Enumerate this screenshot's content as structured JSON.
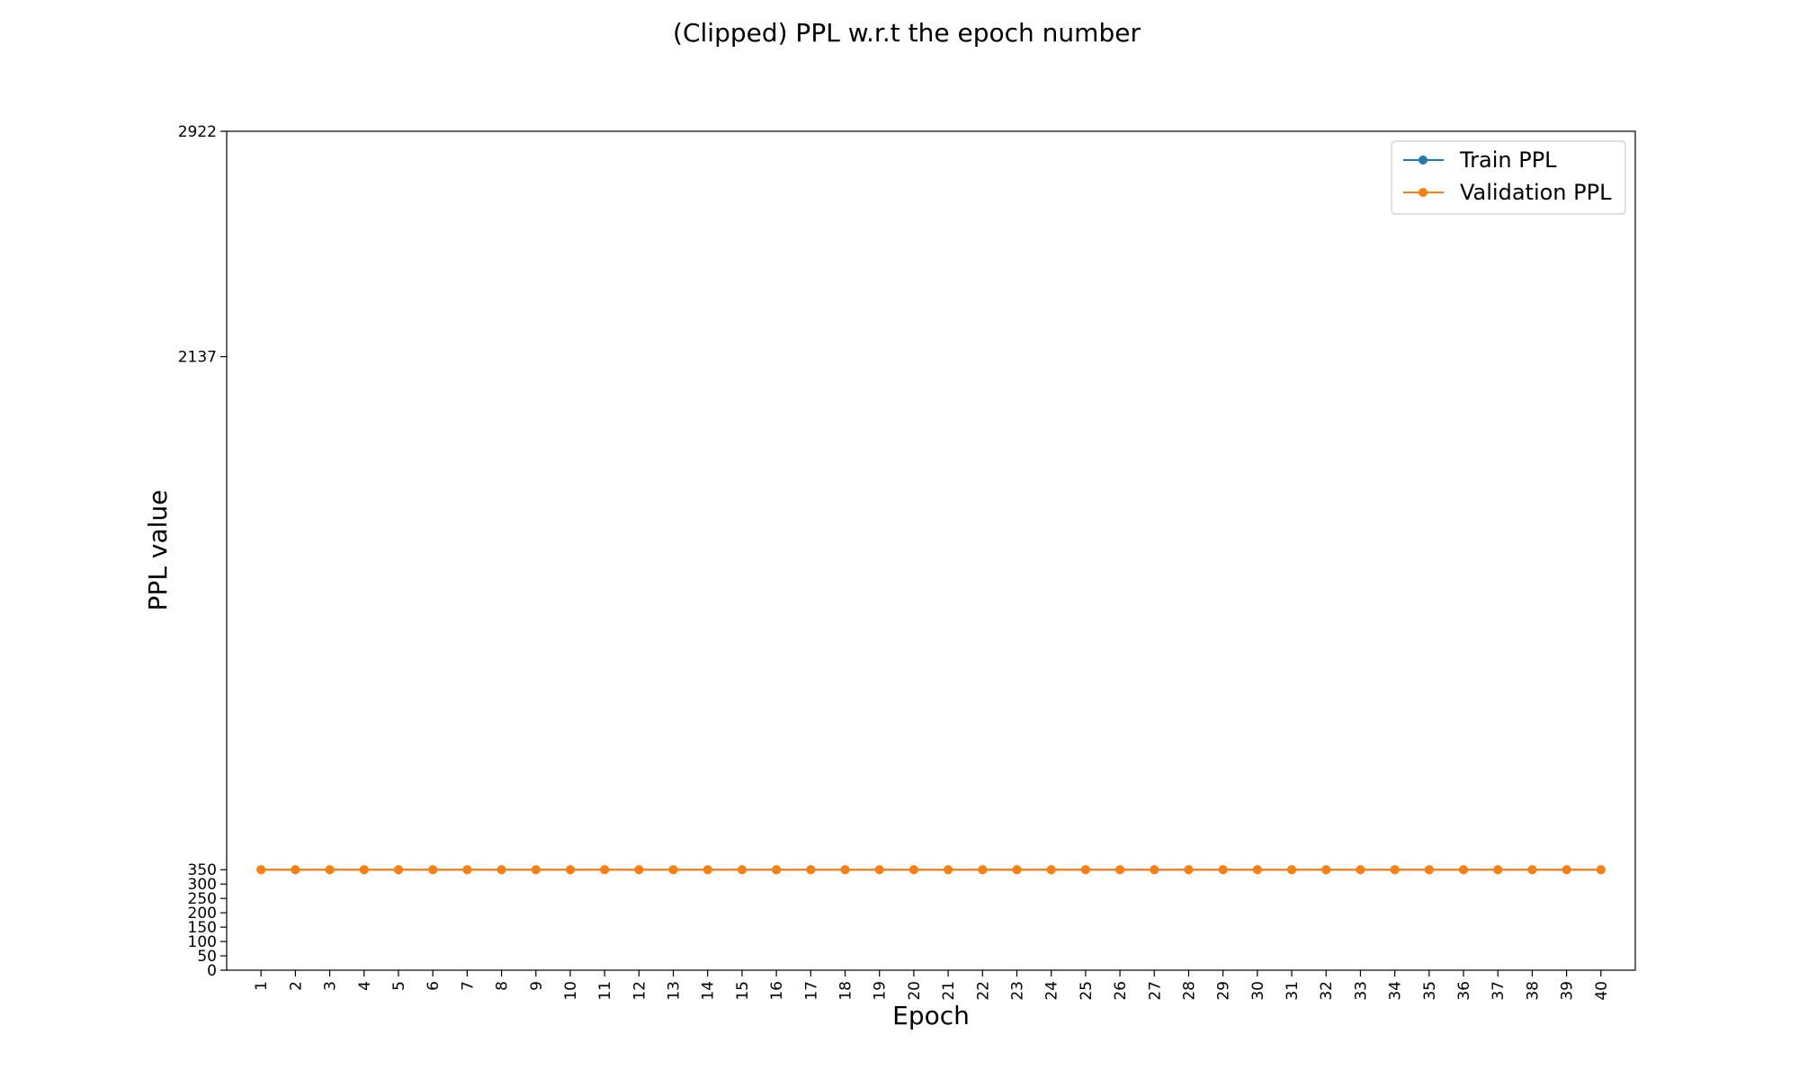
{
  "chart_data": {
    "type": "line",
    "title": "(Clipped) PPL w.r.t the epoch number",
    "xlabel": "Epoch",
    "ylabel": "PPL value",
    "x": [
      1,
      2,
      3,
      4,
      5,
      6,
      7,
      8,
      9,
      10,
      11,
      12,
      13,
      14,
      15,
      16,
      17,
      18,
      19,
      20,
      21,
      22,
      23,
      24,
      25,
      26,
      27,
      28,
      29,
      30,
      31,
      32,
      33,
      34,
      35,
      36,
      37,
      38,
      39,
      40
    ],
    "xticks": [
      "1",
      "2",
      "3",
      "4",
      "5",
      "6",
      "7",
      "8",
      "9",
      "10",
      "11",
      "12",
      "13",
      "14",
      "15",
      "16",
      "17",
      "18",
      "19",
      "20",
      "21",
      "22",
      "23",
      "24",
      "25",
      "26",
      "27",
      "28",
      "29",
      "30",
      "31",
      "32",
      "33",
      "34",
      "35",
      "36",
      "37",
      "38",
      "39",
      "40"
    ],
    "yticks": [
      0,
      50,
      100,
      150,
      200,
      250,
      300,
      350,
      2137,
      2922
    ],
    "ylim": [
      0,
      2922
    ],
    "xlim": [
      0,
      41
    ],
    "series": [
      {
        "name": "Train PPL",
        "color": "#1f77b4",
        "values": [
          350,
          350,
          350,
          350,
          350,
          350,
          350,
          350,
          350,
          350,
          350,
          350,
          350,
          350,
          350,
          350,
          350,
          350,
          350,
          350,
          350,
          350,
          350,
          350,
          350,
          350,
          350,
          350,
          350,
          350,
          350,
          350,
          350,
          350,
          350,
          350,
          350,
          350,
          350,
          350
        ]
      },
      {
        "name": "Validation PPL",
        "color": "#ff7f0e",
        "values": [
          350,
          350,
          350,
          350,
          350,
          350,
          350,
          350,
          350,
          350,
          350,
          350,
          350,
          350,
          350,
          350,
          350,
          350,
          350,
          350,
          350,
          350,
          350,
          350,
          350,
          350,
          350,
          350,
          350,
          350,
          350,
          350,
          350,
          350,
          350,
          350,
          350,
          350,
          350,
          350
        ]
      }
    ],
    "legend_position": "top-right",
    "grid": false
  }
}
